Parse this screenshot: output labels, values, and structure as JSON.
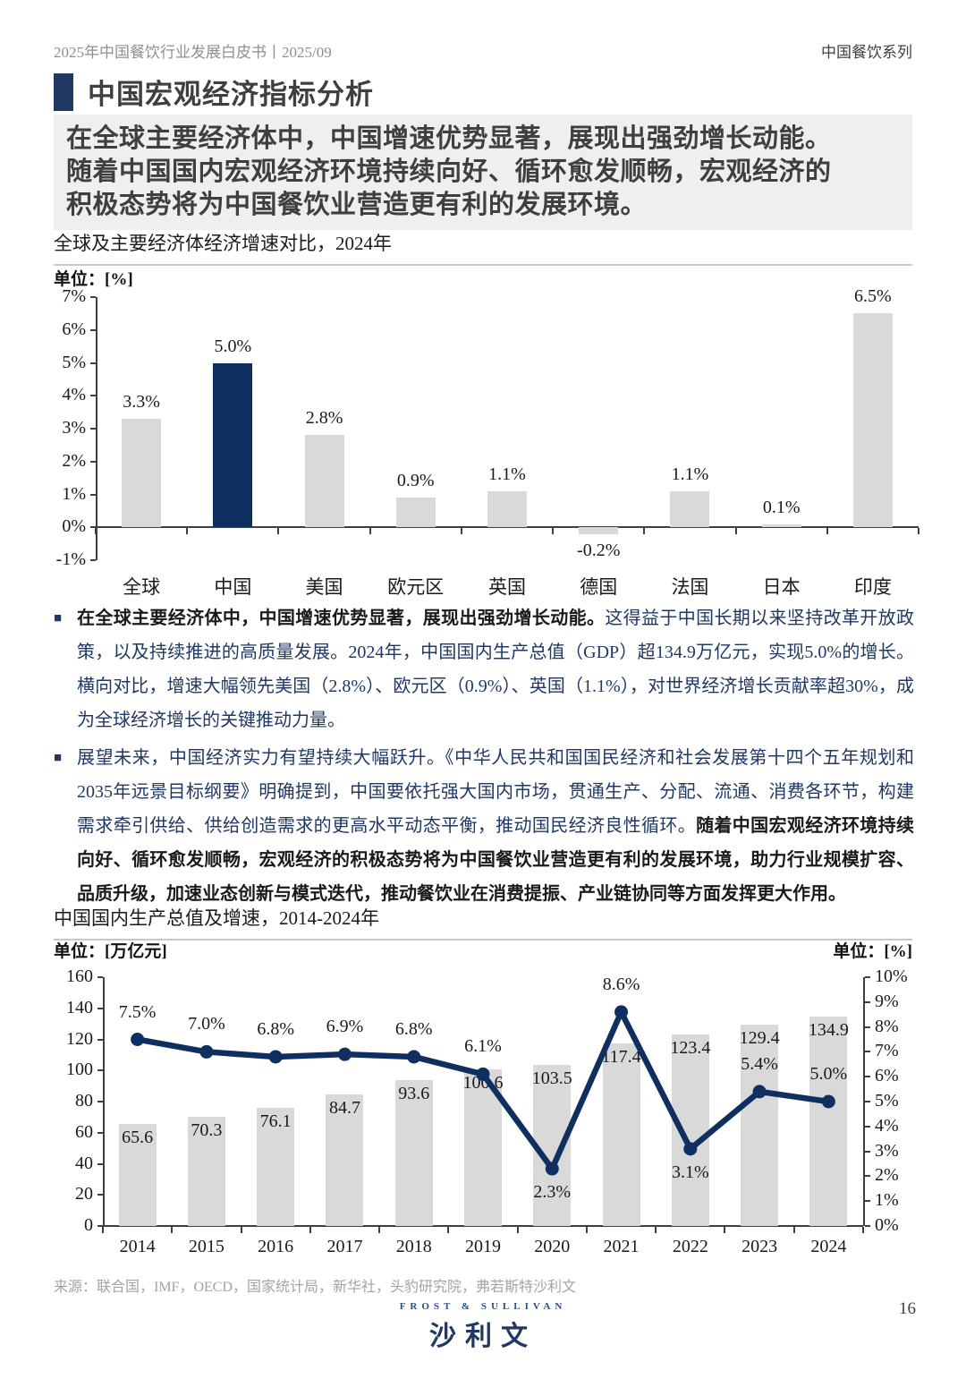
{
  "page": {
    "header_left": "2025年中国餐饮行业发展白皮书丨2025/09",
    "header_right": "中国餐饮系列",
    "section_title": "中国宏观经济指标分析",
    "highlight_text": "在全球主要经济体中，中国增速优势显著，展现出强劲增长动能。\n随着中国国内宏观经济环境持续向好、循环愈发顺畅，宏观经济的\n积极态势将为中国餐饮业营造更有利的发展环境。",
    "bullet_marker": "■",
    "source": "来源：联合国，IMF，OECD，国家统计局，新华社，头豹研究院，弗若斯特沙利文",
    "logo_top": "FROST & SULLIVAN",
    "logo_main": "沙利文",
    "page_number": "16"
  },
  "bullets": [
    {
      "bold_lead": "在全球主要经济体中，中国增速优势显著，展现出强劲增长动能。",
      "text": "这得益于中国长期以来坚持改革开放政策，以及持续推进的高质量发展。2024年，中国国内生产总值（GDP）超134.9万亿元，实现5.0%的增长。横向对比，增速大幅领先美国（2.8%）、欧元区（0.9%）、英国（1.1%），对世界经济增长贡献率超30%，成为全球经济增长的关键推动力量。",
      "bold_tail": ""
    },
    {
      "bold_lead": "",
      "text": "展望未来，中国经济实力有望持续大幅跃升。《中华人民共和国国民经济和社会发展第十四个五年规划和2035年远景目标纲要》明确提到，中国要依托强大国内市场，贯通生产、分配、流通、消费各环节，构建需求牵引供给、供给创造需求的更高水平动态平衡，推动国民经济良性循环。",
      "bold_tail": "随着中国宏观经济环境持续向好、循环愈发顺畅，宏观经济的积极态势将为中国餐饮业营造更有利的发展环境，助力行业规模扩容、品质升级，加速业态创新与模式迭代，推动餐饮业在消费提振、产业链协同等方面发挥更大作用。"
    }
  ],
  "chart_data": [
    {
      "type": "bar",
      "title": "全球及主要经济体经济增速对比，2024年",
      "unit_left": "单位：[%]",
      "categories": [
        "全球",
        "中国",
        "美国",
        "欧元区",
        "英国",
        "德国",
        "法国",
        "日本",
        "印度"
      ],
      "values": [
        3.3,
        5.0,
        2.8,
        0.9,
        1.1,
        -0.2,
        1.1,
        0.1,
        6.5
      ],
      "labels": [
        "3.3%",
        "5.0%",
        "2.8%",
        "0.9%",
        "1.1%",
        "-0.2%",
        "1.1%",
        "0.1%",
        "6.5%"
      ],
      "highlight_index": 1,
      "ylim": [
        -1,
        7
      ],
      "yticks": [
        "7%",
        "6%",
        "5%",
        "4%",
        "3%",
        "2%",
        "1%",
        "0%",
        "-1%"
      ],
      "grid": false,
      "legend": "none",
      "bar_color": "#d9d9d9",
      "highlight_color": "#0e2f5f"
    },
    {
      "type": "bar+line",
      "title": "中国国内生产总值及增速，2014-2024年",
      "unit_left": "单位：[万亿元]",
      "unit_right": "单位：[%]",
      "categories": [
        "2014",
        "2015",
        "2016",
        "2017",
        "2018",
        "2019",
        "2020",
        "2021",
        "2022",
        "2023",
        "2024"
      ],
      "bar_series": {
        "name": "中国国内生产总值（万亿元）",
        "values": [
          65.6,
          70.3,
          76.1,
          84.7,
          93.6,
          100.6,
          103.5,
          117.4,
          123.4,
          129.4,
          134.9
        ],
        "labels": [
          "65.6",
          "70.3",
          "76.1",
          "84.7",
          "93.6",
          "100.6",
          "103.5",
          "117.4",
          "123.4",
          "129.4",
          "134.9"
        ]
      },
      "line_series": {
        "name": "增速（%）",
        "values": [
          7.5,
          7.0,
          6.8,
          6.9,
          6.8,
          6.1,
          2.3,
          8.6,
          3.1,
          5.4,
          5.0
        ],
        "labels": [
          "7.5%",
          "7.0%",
          "6.8%",
          "6.9%",
          "6.8%",
          "6.1%",
          "2.3%",
          "8.6%",
          "3.1%",
          "5.4%",
          "5.0%"
        ]
      },
      "ylim_left": [
        0,
        160
      ],
      "yticks_left": [
        "160",
        "140",
        "120",
        "100",
        "80",
        "60",
        "40",
        "20",
        "0"
      ],
      "ylim_right": [
        0,
        10
      ],
      "yticks_right": [
        "10%",
        "9%",
        "8%",
        "7%",
        "6%",
        "5%",
        "4%",
        "3%",
        "2%",
        "1%",
        "0%"
      ],
      "grid": false,
      "legend": "none",
      "bar_color": "#d9d9d9",
      "line_color": "#0e2f5f"
    }
  ]
}
